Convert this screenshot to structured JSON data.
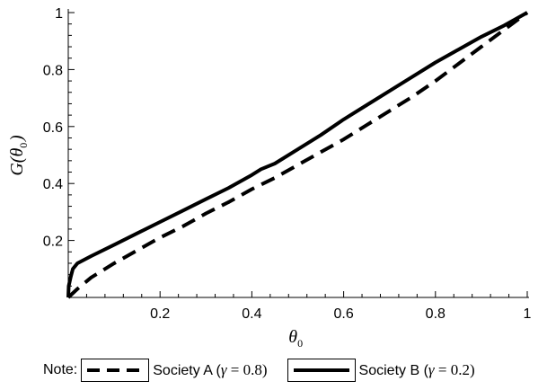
{
  "chart_data": {
    "type": "line",
    "xlabel": "θ0",
    "ylabel": "G(θ0)",
    "xlim": [
      0,
      1
    ],
    "ylim": [
      0,
      1
    ],
    "x_ticks": [
      "0.2",
      "0.4",
      "0.6",
      "0.8",
      "1"
    ],
    "y_ticks": [
      "0.2",
      "0.4",
      "0.6",
      "0.8",
      "1"
    ],
    "grid": false,
    "legend_placement": "bottom",
    "series": [
      {
        "name": "Society A (γ = 0.8)",
        "style": "dashed",
        "color": "#000000",
        "x": [
          0,
          0.02,
          0.05,
          0.1,
          0.15,
          0.2,
          0.25,
          0.3,
          0.35,
          0.4,
          0.45,
          0.5,
          0.55,
          0.6,
          0.65,
          0.7,
          0.75,
          0.8,
          0.85,
          0.9,
          0.95,
          1.0
        ],
        "y": [
          0,
          0.03,
          0.07,
          0.12,
          0.165,
          0.21,
          0.25,
          0.295,
          0.335,
          0.38,
          0.42,
          0.465,
          0.51,
          0.555,
          0.605,
          0.655,
          0.705,
          0.76,
          0.82,
          0.88,
          0.94,
          1.0
        ]
      },
      {
        "name": "Society B (γ = 0.2)",
        "style": "solid",
        "color": "#000000",
        "x": [
          0,
          0.001,
          0.005,
          0.01,
          0.02,
          0.05,
          0.1,
          0.15,
          0.2,
          0.25,
          0.3,
          0.35,
          0.4,
          0.42,
          0.45,
          0.5,
          0.55,
          0.6,
          0.65,
          0.7,
          0.75,
          0.8,
          0.85,
          0.9,
          0.95,
          1.0
        ],
        "y": [
          0,
          0.04,
          0.07,
          0.1,
          0.12,
          0.145,
          0.185,
          0.225,
          0.265,
          0.305,
          0.345,
          0.385,
          0.43,
          0.45,
          0.47,
          0.52,
          0.57,
          0.625,
          0.675,
          0.725,
          0.775,
          0.825,
          0.87,
          0.915,
          0.955,
          1.0
        ]
      }
    ]
  },
  "legend": {
    "note_label": "Note:",
    "entries": [
      {
        "prefix": "Society A (",
        "symbol": "γ",
        "suffix": " = 0.8)",
        "style": "dashed"
      },
      {
        "prefix": "Society B (",
        "symbol": "γ",
        "suffix": " = 0.2)",
        "style": "solid"
      }
    ]
  }
}
